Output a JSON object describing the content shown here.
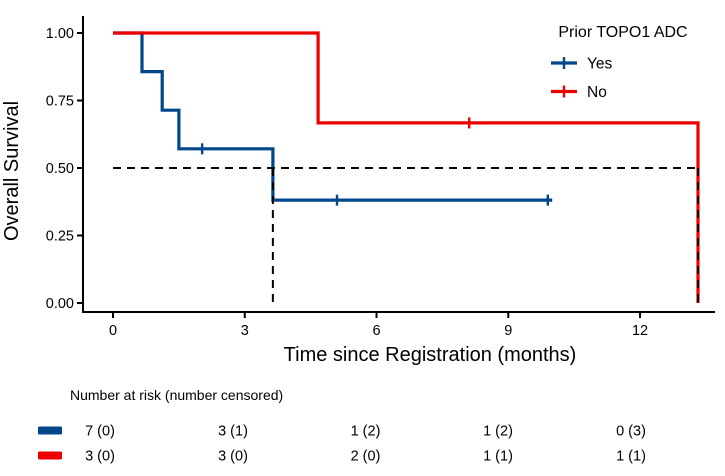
{
  "colors": {
    "yes": "#00468B",
    "no": "#ED0000",
    "reference_line": "#000000",
    "axis": "#000000",
    "background": "#FFFFFF"
  },
  "chart_data": {
    "type": "line",
    "subtype": "kaplan-meier-step",
    "title": "",
    "ylabel": "Overall Survival",
    "xlabel": "Time since Registration (months)",
    "xlim": [
      0,
      13.65
    ],
    "ylim": [
      0,
      1
    ],
    "xticks": [
      0,
      3,
      6,
      9,
      12
    ],
    "yticks": [
      0,
      0.25,
      0.5,
      0.75,
      1
    ],
    "ytick_labels": [
      "0.00",
      "0.25",
      "0.50",
      "0.75",
      "1.00"
    ],
    "grid": "off",
    "legend": {
      "title": "Prior TOPO1 ADC",
      "position": "top-right",
      "entries": [
        {
          "label": "Yes",
          "color": "#00468B"
        },
        {
          "label": "No",
          "color": "#ED0000"
        }
      ]
    },
    "series": [
      {
        "name": "Yes",
        "color": "#00468B",
        "steps": [
          [
            0,
            1.0
          ],
          [
            0.66,
            1.0
          ],
          [
            0.66,
            0.857
          ],
          [
            1.12,
            0.857
          ],
          [
            1.12,
            0.714
          ],
          [
            1.5,
            0.714
          ],
          [
            1.5,
            0.571
          ],
          [
            3.64,
            0.571
          ],
          [
            3.64,
            0.381
          ],
          [
            10.0,
            0.381
          ]
        ],
        "censors": [
          [
            2.03,
            0.571
          ],
          [
            5.1,
            0.381
          ],
          [
            9.9,
            0.381
          ]
        ]
      },
      {
        "name": "No",
        "color": "#ED0000",
        "steps": [
          [
            0,
            1.0
          ],
          [
            4.67,
            1.0
          ],
          [
            4.67,
            0.667
          ],
          [
            13.32,
            0.667
          ],
          [
            13.32,
            0.0
          ]
        ],
        "censors": [
          [
            8.11,
            0.667
          ]
        ]
      }
    ],
    "reference_lines": {
      "half_survival": 0.5,
      "median_times": [
        3.64,
        13.32
      ]
    },
    "risk_table": {
      "header": "Number at risk (number censored)",
      "times": [
        0,
        3,
        6,
        9,
        12
      ],
      "rows": [
        {
          "group": "Yes",
          "color": "#00468B",
          "values": [
            "7 (0)",
            "3 (1)",
            "1 (2)",
            "1 (2)",
            "0 (3)"
          ]
        },
        {
          "group": "No",
          "color": "#ED0000",
          "values": [
            "3 (0)",
            "3 (0)",
            "2 (0)",
            "1 (1)",
            "1 (1)"
          ]
        }
      ]
    }
  }
}
